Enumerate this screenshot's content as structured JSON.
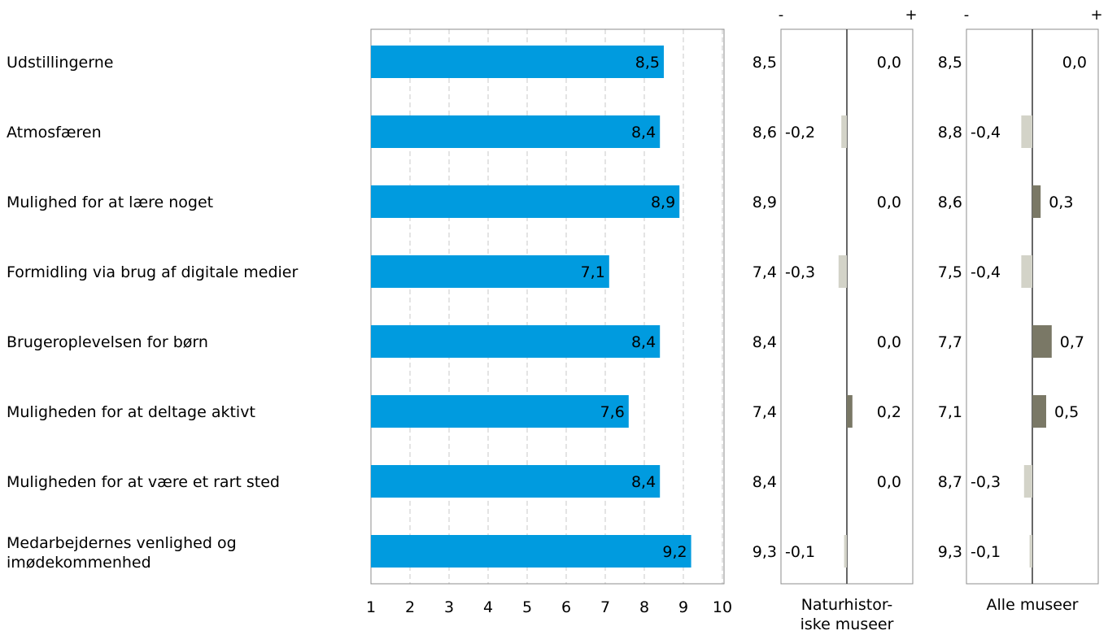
{
  "chart_data": {
    "type": "bar",
    "orientation": "horizontal",
    "categories": [
      "Udstillingerne",
      "Atmosfæren",
      "Mulighed for at lære noget",
      "Formidling via brug af digitale medier",
      "Brugeroplevelsen for børn",
      "Muligheden for at deltage aktivt",
      "Muligheden for at være et rart sted",
      "Medarbejdernes venlighed og imødekommenhed"
    ],
    "values": [
      8.5,
      8.4,
      8.9,
      7.1,
      8.4,
      7.6,
      8.4,
      9.2
    ],
    "value_labels": [
      "8,5",
      "8,4",
      "8,9",
      "7,1",
      "8,4",
      "7,6",
      "8,4",
      "9,2"
    ],
    "xlim": [
      1,
      10
    ],
    "xticks": [
      "1",
      "2",
      "3",
      "4",
      "5",
      "6",
      "7",
      "8",
      "9",
      "10"
    ],
    "grid": true,
    "bar_color": "#009bdf",
    "comparisons": [
      {
        "label_lines": [
          "Naturhistor-",
          "iske museer"
        ],
        "minus_symbol": "-",
        "plus_symbol": "+",
        "reference_values": [
          8.5,
          8.6,
          8.9,
          7.4,
          8.4,
          7.4,
          8.4,
          9.3
        ],
        "reference_labels": [
          "8,5",
          "8,6",
          "8,9",
          "7,4",
          "8,4",
          "7,4",
          "8,4",
          "9,3"
        ],
        "differences": [
          0.0,
          -0.2,
          0.0,
          -0.3,
          0.0,
          0.2,
          0.0,
          -0.1
        ],
        "difference_labels": [
          "0,0",
          "-0,2",
          "0,0",
          "-0,3",
          "0,0",
          "0,2",
          "0,0",
          "-0,1"
        ]
      },
      {
        "label_lines": [
          "Alle museer"
        ],
        "minus_symbol": "-",
        "plus_symbol": "+",
        "reference_values": [
          8.5,
          8.8,
          8.6,
          7.5,
          7.7,
          7.1,
          8.7,
          9.3
        ],
        "reference_labels": [
          "8,5",
          "8,8",
          "8,6",
          "7,5",
          "7,7",
          "7,1",
          "8,7",
          "9,3"
        ],
        "differences": [
          0.0,
          -0.4,
          0.3,
          -0.4,
          0.7,
          0.5,
          -0.3,
          -0.1
        ],
        "difference_labels": [
          "0,0",
          "-0,4",
          "0,3",
          "-0,4",
          "0,7",
          "0,5",
          "-0,3",
          "-0,1"
        ]
      }
    ],
    "positive_color": "#7a7866",
    "negative_color": "#d3d3c8"
  }
}
